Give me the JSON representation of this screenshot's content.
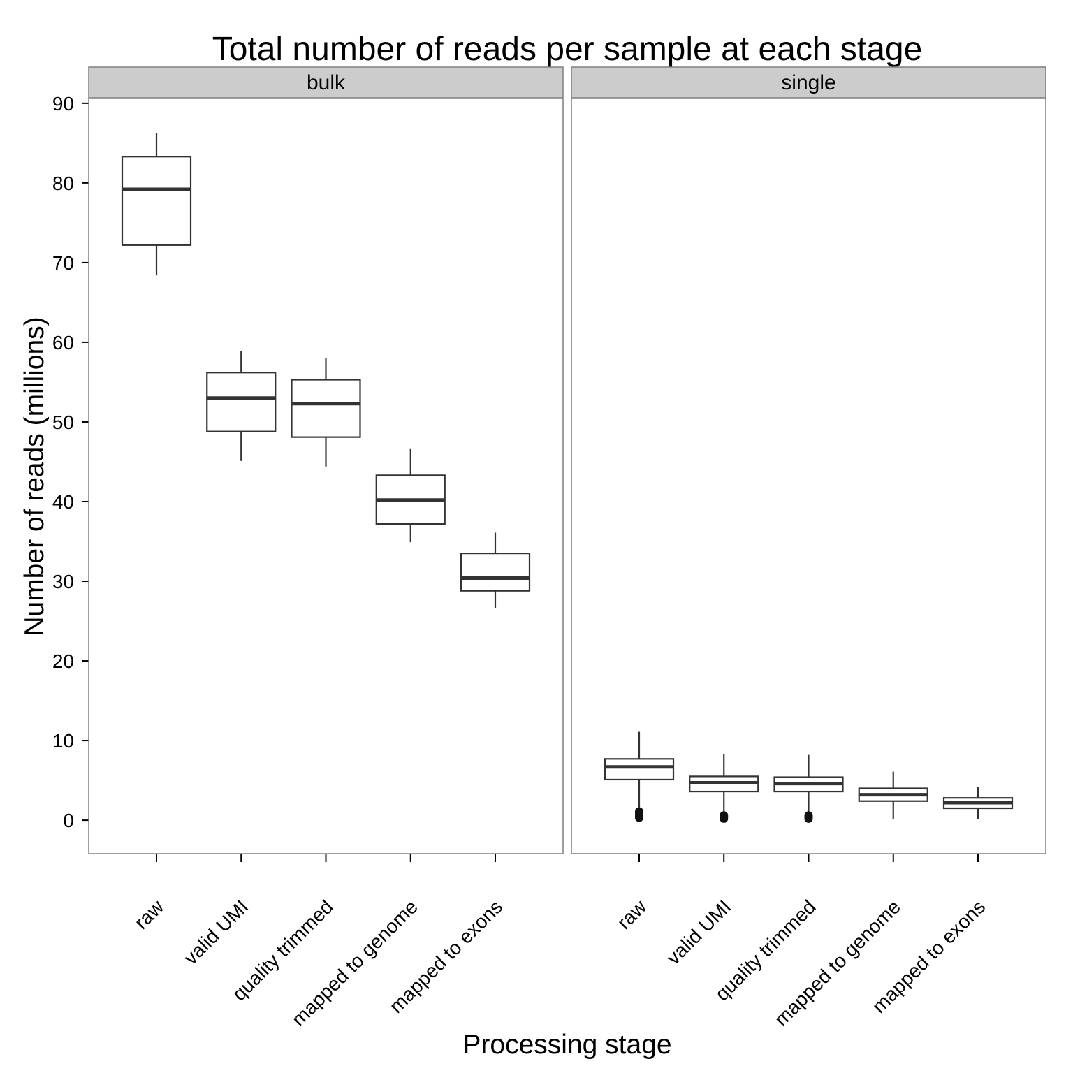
{
  "chart_data": {
    "type": "boxplot",
    "title": "Total number of reads per sample at each stage",
    "xlabel": "Processing stage",
    "ylabel": "Number of reads (millions)",
    "ylim": [
      -4.2,
      90.6
    ],
    "yticks": [
      0,
      10,
      20,
      30,
      40,
      50,
      60,
      70,
      80,
      90
    ],
    "categories": [
      "raw",
      "valid UMI",
      "quality trimmed",
      "mapped to genome",
      "mapped to exons"
    ],
    "grid": false,
    "facets": [
      {
        "name": "bulk",
        "boxes": [
          {
            "category": "raw",
            "min": 68.4,
            "q1": 72.2,
            "median": 79.2,
            "q3": 83.3,
            "max": 86.3,
            "outliers": []
          },
          {
            "category": "valid UMI",
            "min": 45.1,
            "q1": 48.8,
            "median": 53.0,
            "q3": 56.2,
            "max": 58.9,
            "outliers": []
          },
          {
            "category": "quality trimmed",
            "min": 44.4,
            "q1": 48.1,
            "median": 52.3,
            "q3": 55.3,
            "max": 58.0,
            "outliers": []
          },
          {
            "category": "mapped to genome",
            "min": 34.9,
            "q1": 37.2,
            "median": 40.2,
            "q3": 43.3,
            "max": 46.6,
            "outliers": []
          },
          {
            "category": "mapped to exons",
            "min": 26.6,
            "q1": 28.8,
            "median": 30.4,
            "q3": 33.5,
            "max": 36.1,
            "outliers": []
          }
        ]
      },
      {
        "name": "single",
        "boxes": [
          {
            "category": "raw",
            "min": 1.3,
            "q1": 5.1,
            "median": 6.7,
            "q3": 7.7,
            "max": 11.1,
            "outliers": [
              0.3,
              0.5,
              0.7,
              0.9,
              1.1
            ]
          },
          {
            "category": "valid UMI",
            "min": 0.9,
            "q1": 3.6,
            "median": 4.7,
            "q3": 5.5,
            "max": 8.3,
            "outliers": [
              0.2,
              0.4,
              0.6
            ]
          },
          {
            "category": "quality trimmed",
            "min": 0.8,
            "q1": 3.6,
            "median": 4.6,
            "q3": 5.4,
            "max": 8.2,
            "outliers": [
              0.2,
              0.4,
              0.6
            ]
          },
          {
            "category": "mapped to genome",
            "min": 0.1,
            "q1": 2.4,
            "median": 3.2,
            "q3": 4.0,
            "max": 6.1,
            "outliers": []
          },
          {
            "category": "mapped to exons",
            "min": 0.1,
            "q1": 1.5,
            "median": 2.2,
            "q3": 2.8,
            "max": 4.2,
            "outliers": []
          }
        ]
      }
    ]
  }
}
